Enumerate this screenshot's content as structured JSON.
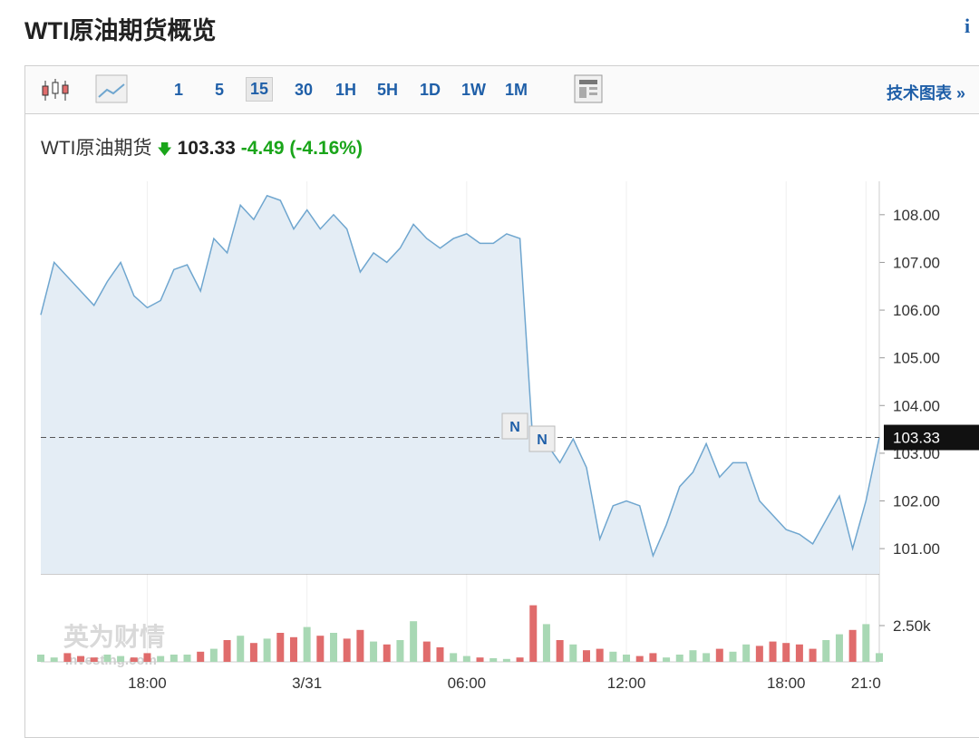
{
  "header": {
    "title": "WTI原油期货概览",
    "info": "i"
  },
  "toolbar": {
    "intervals": [
      "1",
      "5",
      "15",
      "30",
      "1H",
      "5H",
      "1D",
      "1W",
      "1M"
    ],
    "active": 2,
    "link": "技术图表 »"
  },
  "quote": {
    "name": "WTI原油期货",
    "price": 103.33,
    "change": -4.49,
    "change_pct": "(-4.16%)"
  },
  "watermark": [
    "英为财情",
    "Investing.com"
  ],
  "chart_data": {
    "type": "line",
    "categories": [
      null,
      null,
      null,
      null,
      null,
      null,
      null,
      null,
      "18:00",
      null,
      null,
      null,
      null,
      null,
      null,
      null,
      null,
      null,
      null,
      null,
      "3/31",
      null,
      null,
      null,
      null,
      null,
      null,
      null,
      null,
      null,
      null,
      null,
      "06:00",
      null,
      null,
      null,
      null,
      null,
      null,
      null,
      null,
      null,
      null,
      null,
      "12:00",
      null,
      null,
      null,
      null,
      null,
      null,
      null,
      null,
      null,
      null,
      null,
      "18:00",
      null,
      null,
      null,
      null,
      null,
      "21:0",
      null
    ],
    "series": [
      {
        "name": "WTI原油期货",
        "color": "#6fa6cf",
        "values": [
          105.9,
          107.0,
          106.7,
          106.4,
          106.1,
          106.6,
          107.0,
          106.3,
          106.05,
          106.2,
          106.85,
          106.95,
          106.4,
          107.5,
          107.2,
          108.2,
          107.9,
          108.4,
          108.3,
          107.7,
          108.1,
          107.7,
          108.0,
          107.7,
          106.8,
          107.2,
          107.0,
          107.3,
          107.8,
          107.5,
          107.3,
          107.5,
          107.6,
          107.4,
          107.4,
          107.6,
          107.5,
          103.1,
          103.2,
          102.8,
          103.3,
          102.7,
          101.2,
          101.9,
          102.0,
          101.9,
          100.85,
          101.5,
          102.3,
          102.6,
          103.2,
          102.5,
          102.8,
          102.8,
          102.0,
          101.7,
          101.4,
          101.3,
          101.1,
          101.6,
          102.1,
          101.0,
          102.0,
          103.33
        ]
      }
    ],
    "ylim": [
      100.47,
      108.7
    ],
    "yticks": [
      {
        "value": 101,
        "label": "101.00"
      },
      {
        "value": 102,
        "label": "102.00"
      },
      {
        "value": 103,
        "label": "103.00"
      },
      {
        "value": 104,
        "label": "104.00"
      },
      {
        "value": 105,
        "label": "105.00"
      },
      {
        "value": 106,
        "label": "106.00"
      },
      {
        "value": 107,
        "label": "107.00"
      },
      {
        "value": 108,
        "label": "108.00"
      }
    ],
    "last_price": {
      "value": 103.33,
      "label": "103.33"
    },
    "annotations": [
      "N",
      "N"
    ],
    "volume": {
      "values": [
        500,
        300,
        600,
        400,
        300,
        500,
        400,
        300,
        600,
        400,
        500,
        500,
        700,
        900,
        1500,
        1800,
        1300,
        1600,
        2000,
        1700,
        2400,
        1800,
        2000,
        1600,
        2200,
        1400,
        1200,
        1500,
        2800,
        1400,
        1000,
        600,
        400,
        300,
        250,
        200,
        300,
        3900,
        2600,
        1500,
        1200,
        800,
        900,
        700,
        500,
        400,
        600,
        300,
        500,
        800,
        600,
        900,
        700,
        1200,
        1100,
        1400,
        1300,
        1200,
        900,
        1500,
        1900,
        2200,
        2600,
        600
      ],
      "up_color": "#a8d8b4",
      "down_color": "#e06c6c",
      "ylim": [
        0,
        5000
      ],
      "yticks": [
        {
          "value": 2500,
          "label": "2.50k"
        }
      ]
    }
  }
}
